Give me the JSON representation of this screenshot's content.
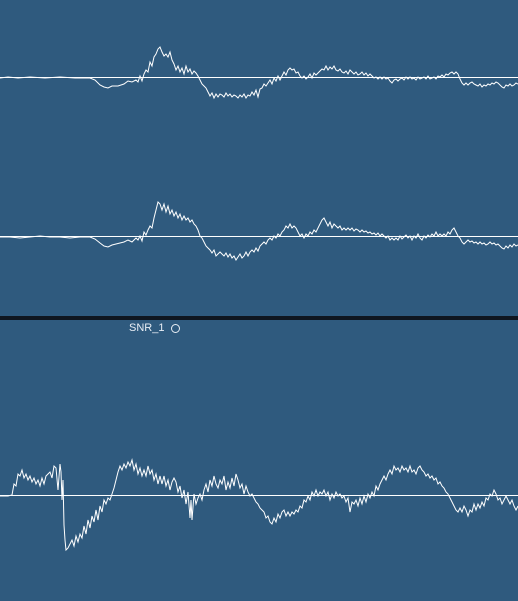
{
  "colors": {
    "background": "#2f5a7e",
    "divider": "#0f1620",
    "waveform": "#ffffff",
    "label_text": "#e8eef5"
  },
  "regions": [
    {
      "channels": 2,
      "label": ""
    },
    {
      "channels": 1,
      "label": "SNR_1",
      "status_icon": "record-circle-icon"
    }
  ],
  "icons": {
    "region_status": "record-circle-icon"
  }
}
